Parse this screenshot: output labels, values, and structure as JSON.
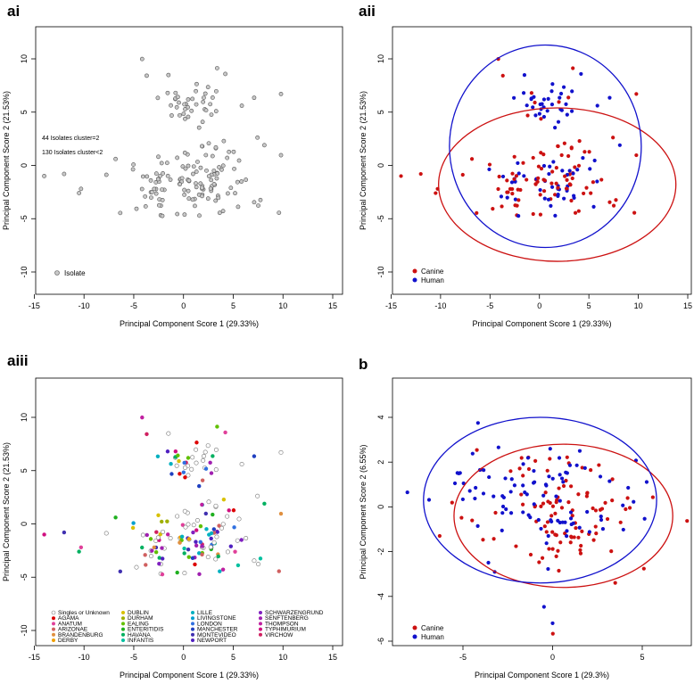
{
  "panel_letters": [
    "ai",
    "aii",
    "aiii",
    "b"
  ],
  "chart_data": [
    {
      "id": "ai",
      "type": "scatter",
      "title": "",
      "xlabel": "Principal Component Score 1 (29.33%)",
      "ylabel": "Principal Component Score 2 (21.53%)",
      "xlim": [
        -15,
        15
      ],
      "ylim": [
        -11,
        13
      ],
      "xticks": [
        -15,
        -10,
        -5,
        0,
        5,
        10,
        15
      ],
      "yticks": [
        -10,
        -5,
        0,
        5,
        10
      ],
      "annotations": [
        "44 Isolates cluster=2",
        "130 Isolates cluster<2"
      ],
      "legend": [
        "Isolate"
      ],
      "colors": {
        "Isolate": "#9a9a9a"
      }
    },
    {
      "id": "aii",
      "type": "scatter",
      "title": "",
      "xlabel": "Principal Component Score 1 (29.33%)",
      "ylabel": "Principal Component Score 2 (21.53%)",
      "xlim": [
        -15,
        15
      ],
      "ylim": [
        -11,
        13
      ],
      "xticks": [
        -15,
        -10,
        -5,
        0,
        5,
        10,
        15
      ],
      "yticks": [
        -10,
        -5,
        0,
        5,
        10
      ],
      "legend": [
        "Canine",
        "Human"
      ],
      "colors": {
        "Canine": "#cc1111",
        "Human": "#1111cc"
      },
      "ellipses": [
        {
          "series": "Canine",
          "cx": 1.8,
          "cy": -1.8,
          "rx": 12.0,
          "ry": 7.2
        },
        {
          "series": "Human",
          "cx": 0.6,
          "cy": 1.8,
          "rx": 9.7,
          "ry": 9.5
        }
      ]
    },
    {
      "id": "aiii",
      "type": "scatter",
      "title": "",
      "xlabel": "Principal Component Score 1 (29.33%)",
      "ylabel": "Principal Component Score 2 (21.53%)",
      "xlim": [
        -15,
        15
      ],
      "ylim": [
        -11,
        13
      ],
      "xticks": [
        -15,
        -10,
        -5,
        0,
        5,
        10,
        15
      ],
      "yticks": [
        -10,
        -5,
        0,
        5,
        10
      ],
      "legend": [
        {
          "name": "Singles or Unknown",
          "color": "#ffffff"
        },
        {
          "name": "AGAMA",
          "color": "#dd0000"
        },
        {
          "name": "ANATUM",
          "color": "#e0409a"
        },
        {
          "name": "ARIZONAE",
          "color": "#d06060"
        },
        {
          "name": "BRANDENBURG",
          "color": "#e09040"
        },
        {
          "name": "DERBY",
          "color": "#f0a000"
        },
        {
          "name": "DUBLIN",
          "color": "#d8c000"
        },
        {
          "name": "DURHAM",
          "color": "#a0b000"
        },
        {
          "name": "EALING",
          "color": "#60c000"
        },
        {
          "name": "ENTERITIDIS",
          "color": "#20b020"
        },
        {
          "name": "HAVANA",
          "color": "#00b060"
        },
        {
          "name": "INFANTIS",
          "color": "#00c0a0"
        },
        {
          "name": "LILLE",
          "color": "#00b0c0"
        },
        {
          "name": "LIVINGSTONE",
          "color": "#00a0d0"
        },
        {
          "name": "LONDON",
          "color": "#3070e0"
        },
        {
          "name": "MANCHESTER",
          "color": "#2040c0"
        },
        {
          "name": "MONTEVIDEO",
          "color": "#4030b0"
        },
        {
          "name": "NEWPORT",
          "color": "#5020c0"
        },
        {
          "name": "SCHWARZENGRUND",
          "color": "#8020c0"
        },
        {
          "name": "SENFTENBERG",
          "color": "#a020b0"
        },
        {
          "name": "THOMPSON",
          "color": "#c020a0"
        },
        {
          "name": "TYPHIMURIUM",
          "color": "#d01080"
        },
        {
          "name": "VIRCHOW",
          "color": "#d02060"
        }
      ]
    },
    {
      "id": "b",
      "type": "scatter",
      "title": "",
      "xlabel": "Principal Component Score 1 (29.3%)",
      "ylabel": "Principal Component Score 2 (6.55%)",
      "xlim": [
        -9,
        8
      ],
      "ylim": [
        -6.2,
        4.8
      ],
      "xticks": [
        -5,
        0,
        5
      ],
      "yticks": [
        -6,
        -4,
        -2,
        0,
        2,
        4
      ],
      "legend": [
        "Canine",
        "Human"
      ],
      "colors": {
        "Canine": "#cc1111",
        "Human": "#1111cc"
      },
      "ellipses": [
        {
          "series": "Canine",
          "cx": 0.6,
          "cy": -0.4,
          "rx": 6.1,
          "ry": 3.2
        },
        {
          "series": "Human",
          "cx": -0.7,
          "cy": 0.3,
          "rx": 6.5,
          "ry": 3.7
        }
      ]
    }
  ]
}
